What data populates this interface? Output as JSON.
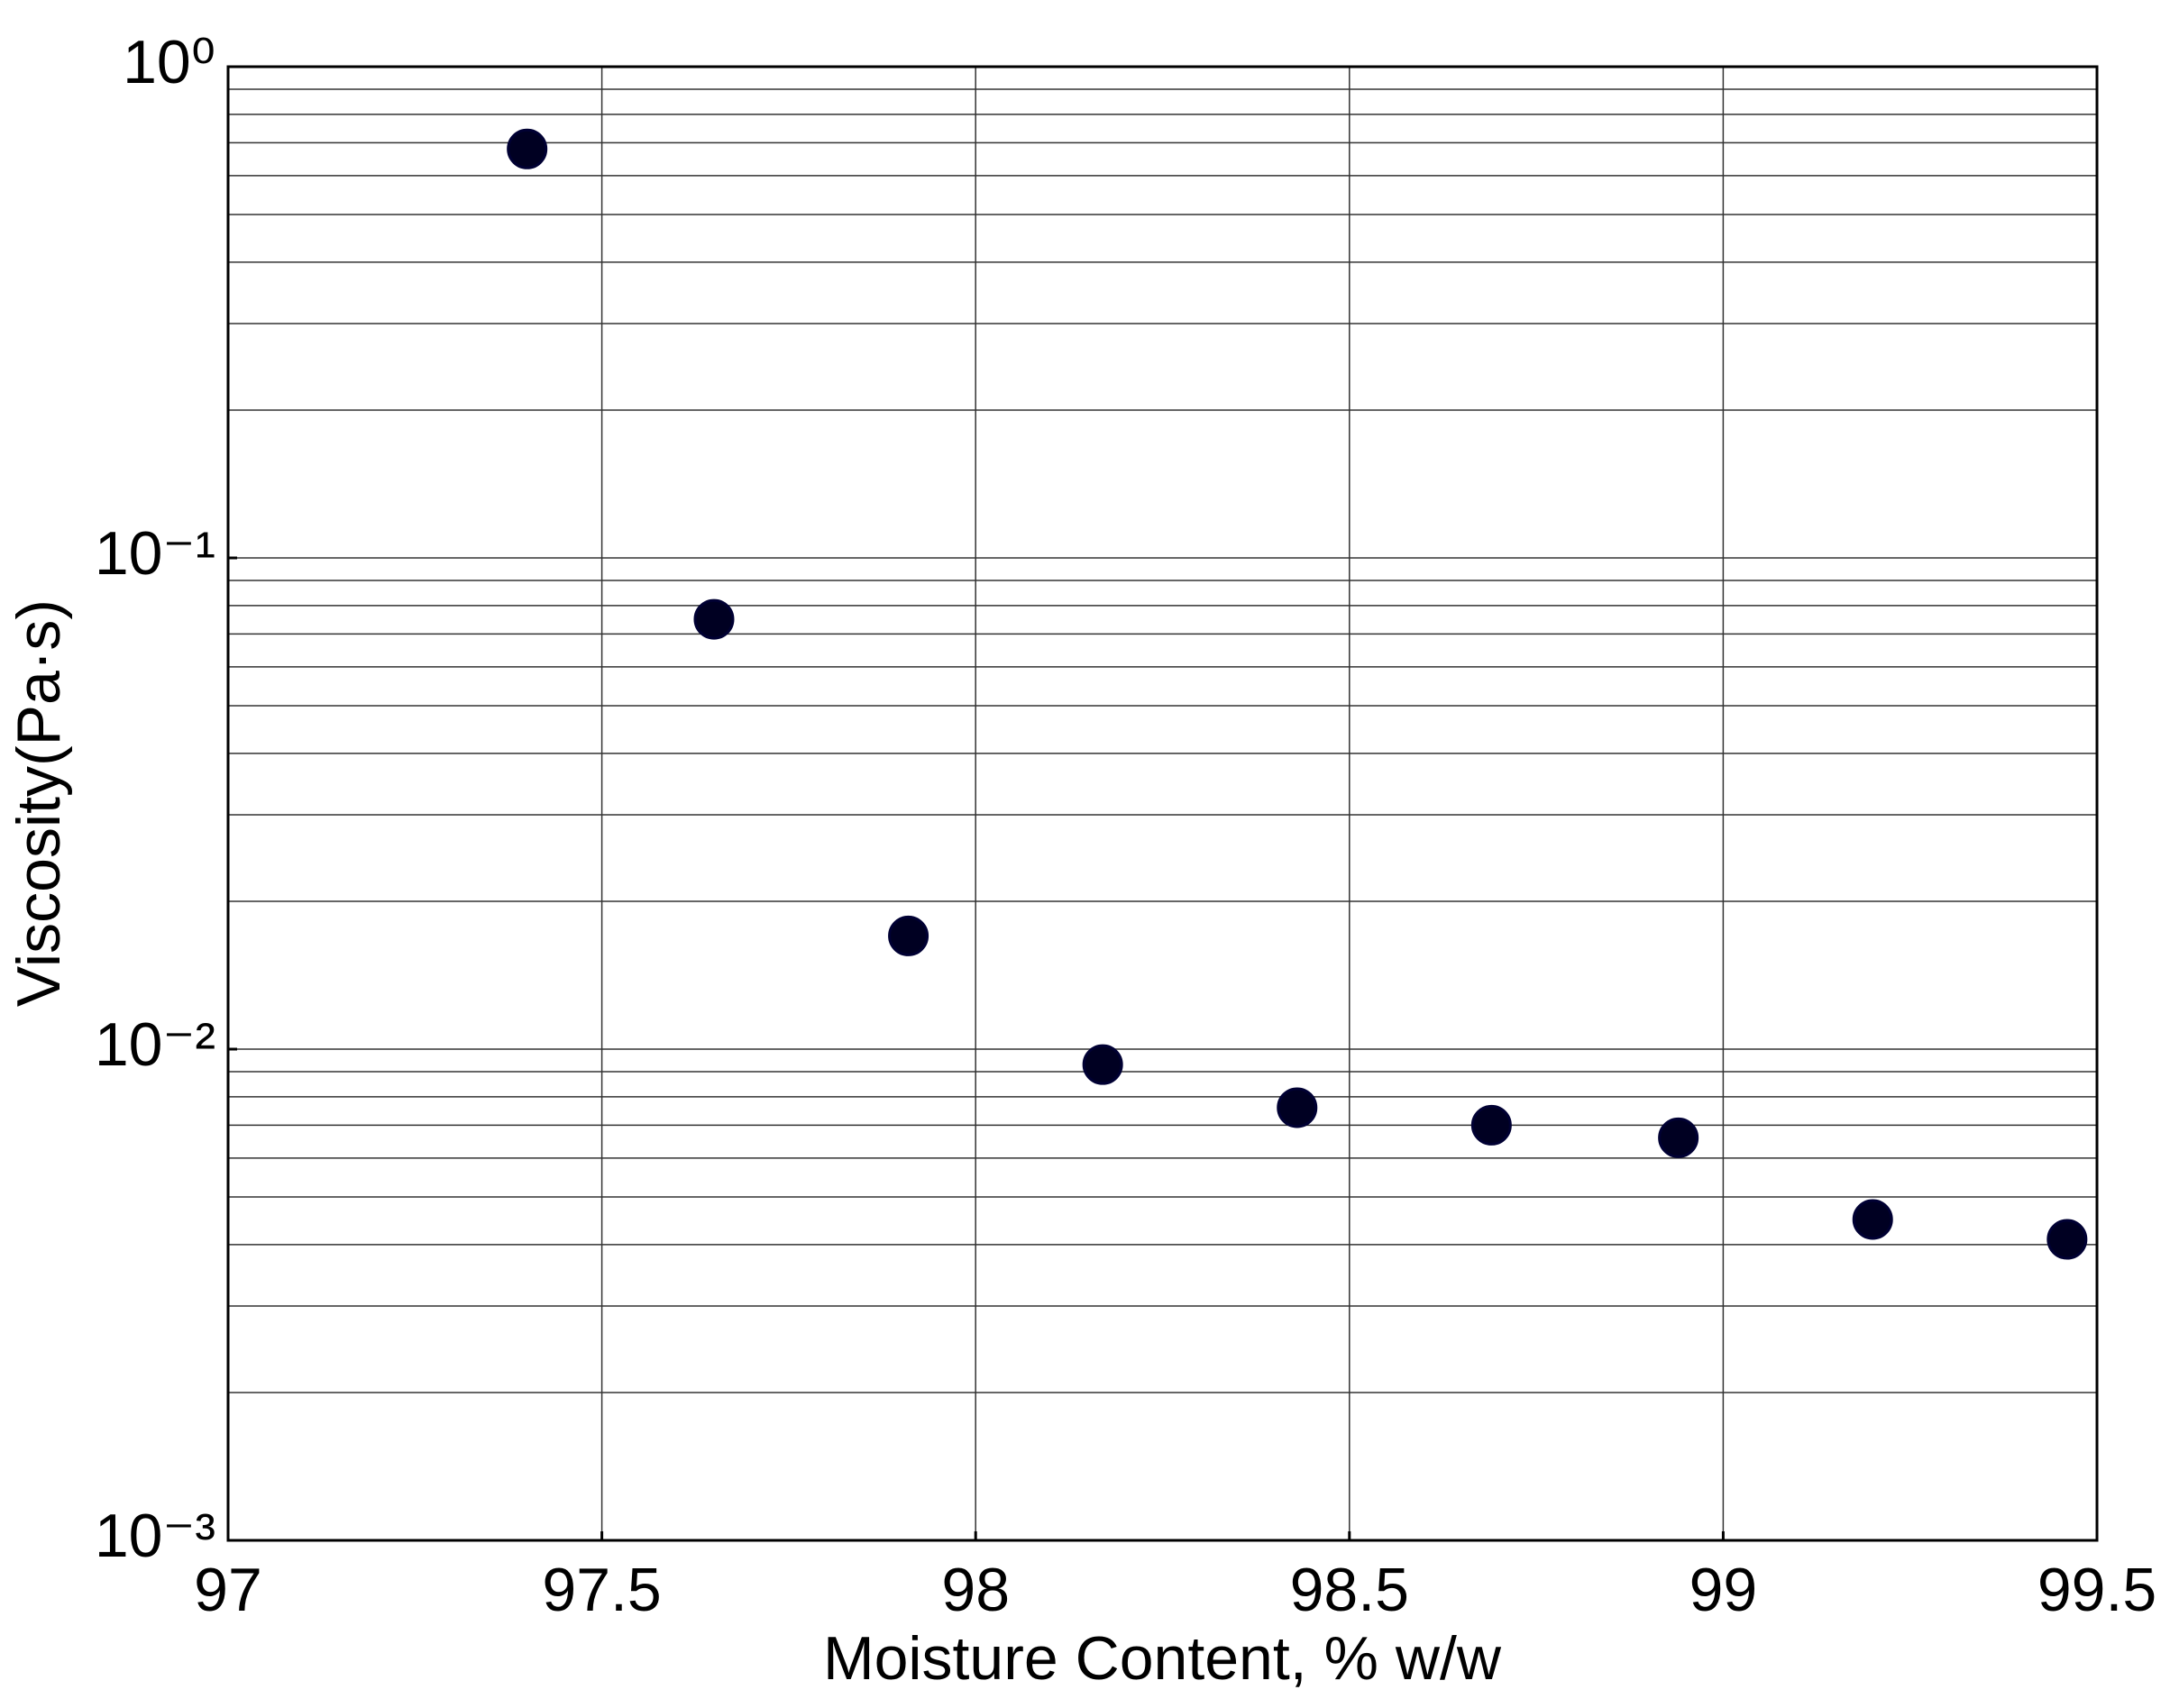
{
  "chart_data": {
    "type": "scatter",
    "x_label": "Moisture Content, % w/w",
    "y_label": "Viscosity(Pa·s)",
    "x": [
      97.4,
      97.65,
      97.91,
      98.17,
      98.43,
      98.69,
      98.94,
      99.2,
      99.46
    ],
    "values": [
      0.68,
      0.075,
      0.017,
      0.0093,
      0.0076,
      0.007,
      0.0066,
      0.0045,
      0.0041
    ],
    "color": "#000022",
    "xlim": [
      97,
      99.5
    ],
    "xticks": [
      97,
      97.5,
      98,
      98.5,
      99,
      99.5
    ],
    "ylim": [
      0.001,
      1
    ],
    "yticks": [
      {
        "value": 0.001,
        "label": "10⁻³"
      },
      {
        "value": 0.01,
        "label": "10⁻²"
      },
      {
        "value": 0.1,
        "label": "10⁻¹"
      },
      {
        "value": 1,
        "label": "10⁰"
      }
    ],
    "y_log": true,
    "grid": true,
    "minor_grid": true
  }
}
